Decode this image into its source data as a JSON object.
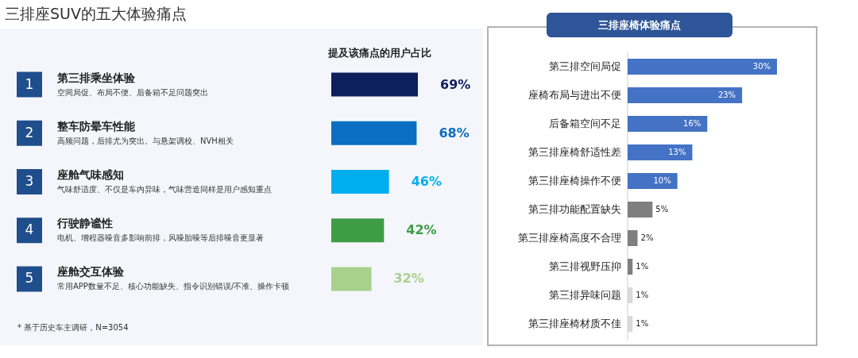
{
  "chart_data": [
    {
      "type": "bar",
      "orientation": "horizontal",
      "title": "三排座SUV的五大体验痛点",
      "xlabel": "提及该痛点的用户占比",
      "categories": [
        "第三排乘坐体验",
        "整车防晕车性能",
        "座舱气味感知",
        "行驶静谧性",
        "座舱交互体验"
      ],
      "values": [
        69,
        68,
        46,
        42,
        32
      ],
      "value_labels": [
        "69%",
        "68%",
        "46%",
        "42%",
        "32%"
      ],
      "colors": [
        "#0d1f5c",
        "#0a6fc2",
        "#00aeef",
        "#3f9c46",
        "#a8d18d"
      ],
      "annotations": [
        "1",
        "2",
        "3",
        "4",
        "5",
        "空间局促、布局不便、后备箱不足问题突出",
        "高频问题，后排尤为突出。与悬架调校、NVH相关",
        "气味舒适度、不仅是车内异味，气味营造同样是用户感知重点",
        "电机、增程器噪音多影响前排，风噪胎噪等后排噪音更显著",
        "常用APP数量不足、核心功能缺失、指令识别错误/不准、操作卡顿",
        "* 基于历史车主调研，N=3054"
      ]
    },
    {
      "type": "bar",
      "orientation": "horizontal",
      "title": "三排座椅体验痛点",
      "categories": [
        "第三排空间局促",
        "座椅布局与进出不便",
        "后备箱空间不足",
        "第三排座椅舒适性差",
        "第三排座椅操作不便",
        "第三排功能配置缺失",
        "第三排座椅高度不合理",
        "第三排视野压抑",
        "第三排异味问题",
        "第三排座椅材质不佳"
      ],
      "values": [
        30,
        23,
        16,
        13,
        10,
        5,
        2,
        1,
        1,
        1
      ],
      "value_labels": [
        "30%",
        "23%",
        "16%",
        "13%",
        "10%",
        "5%",
        "2%",
        "1%",
        "1%",
        "1%"
      ],
      "colors": [
        "#4472c4",
        "#4472c4",
        "#4472c4",
        "#4472c4",
        "#4472c4",
        "#7f7f7f",
        "#7f7f7f",
        "#7f7f7f",
        "#d9d9d9",
        "#d9d9d9"
      ]
    }
  ]
}
